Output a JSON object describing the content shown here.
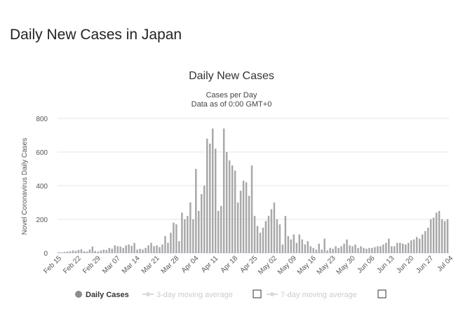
{
  "page": {
    "heading": "Daily New Cases in Japan"
  },
  "chart_data": {
    "type": "bar",
    "title": "Daily New Cases",
    "subtitle_1": "Cases per Day",
    "subtitle_2": "Data as of 0:00 GMT+0",
    "ylabel": "Novel Coronavirus Daily Cases",
    "xlabel": "",
    "ylim": [
      0,
      800
    ],
    "yticks": [
      0,
      200,
      400,
      600,
      800
    ],
    "grid": true,
    "legend_position": "bottom",
    "bar_color": "#a8a8a8",
    "x_tick_labels": [
      "Feb 15",
      "Feb 22",
      "Feb 29",
      "Mar 07",
      "Mar 14",
      "Mar 21",
      "Mar 28",
      "Apr 04",
      "Apr 11",
      "Apr 18",
      "Apr 25",
      "May 02",
      "May 09",
      "May 16",
      "May 23",
      "May 30",
      "Jun 06",
      "Jun 13",
      "Jun 20",
      "Jun 27",
      "Jul 04"
    ],
    "x_tick_every": 7,
    "start_date": "Feb 15",
    "series": [
      {
        "name": "Daily Cases",
        "values": [
          5,
          3,
          6,
          8,
          10,
          15,
          12,
          18,
          22,
          10,
          8,
          20,
          38,
          12,
          8,
          15,
          20,
          18,
          30,
          25,
          45,
          40,
          38,
          30,
          45,
          50,
          42,
          60,
          20,
          25,
          20,
          30,
          45,
          60,
          40,
          45,
          35,
          50,
          100,
          60,
          120,
          180,
          170,
          70,
          240,
          200,
          220,
          300,
          200,
          500,
          250,
          350,
          400,
          680,
          650,
          740,
          620,
          250,
          280,
          740,
          600,
          550,
          520,
          490,
          300,
          370,
          430,
          420,
          340,
          520,
          220,
          160,
          120,
          150,
          190,
          220,
          260,
          300,
          200,
          170,
          50,
          220,
          100,
          80,
          110,
          60,
          110,
          80,
          50,
          70,
          40,
          30,
          20,
          55,
          20,
          85,
          15,
          30,
          25,
          40,
          30,
          40,
          55,
          80,
          45,
          40,
          50,
          30,
          40,
          30,
          25,
          30,
          30,
          35,
          40,
          40,
          50,
          60,
          85,
          40,
          40,
          60,
          60,
          55,
          50,
          60,
          75,
          80,
          95,
          85,
          110,
          130,
          150,
          200,
          210,
          240,
          250,
          200,
          190,
          200
        ]
      }
    ],
    "legend": [
      {
        "label": "Daily Cases",
        "active": true,
        "color": "#8c8c8c"
      },
      {
        "label": "3-day moving average",
        "active": false,
        "color": "#d9d9d9"
      },
      {
        "label": "7-day moving average",
        "active": false,
        "color": "#d9d9d9"
      }
    ]
  }
}
